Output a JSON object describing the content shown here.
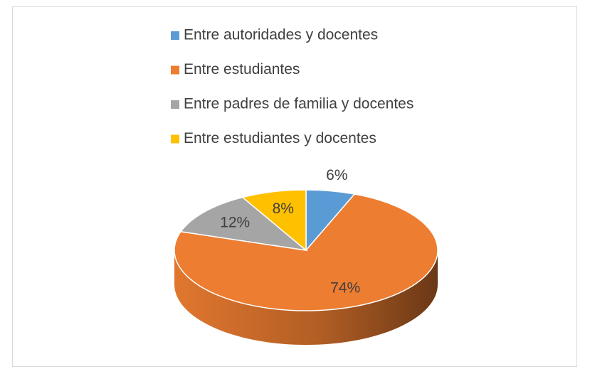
{
  "chart_data": {
    "type": "pie",
    "categories": [
      "Entre autoridades y docentes",
      "Entre estudiantes",
      "Entre padres de familia y docentes",
      "Entre estudiantes y docentes"
    ],
    "values": [
      6,
      74,
      12,
      8
    ],
    "value_labels": [
      "6%",
      "74%",
      "12%",
      "8%"
    ],
    "colors": [
      "#5b9bd5",
      "#ed7d31",
      "#a5a5a5",
      "#ffc000"
    ],
    "legend": "top"
  }
}
